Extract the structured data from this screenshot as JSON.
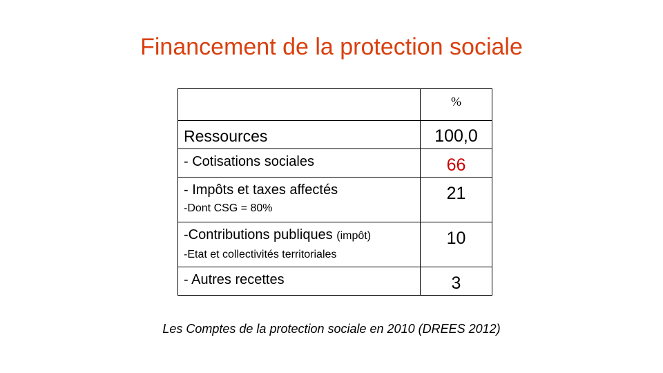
{
  "slide": {
    "title": "Financement de la protection sociale",
    "source": "Les Comptes de la protection sociale en 2010  (DREES 2012)",
    "colors": {
      "title": "#d9400f",
      "highlight_value": "#cc0000",
      "text": "#000000"
    }
  },
  "table": {
    "header_unit": "%",
    "rows": [
      {
        "label": "Ressources",
        "value": "100,0"
      },
      {
        "label": "- Cotisations sociales",
        "value": "66"
      },
      {
        "label": "- Impôts et taxes affectés",
        "sublabel": "-Dont CSG = 80%",
        "value": "21"
      },
      {
        "label": "-Contributions publiques ",
        "label_suffix": "(impôt)",
        "sublabel": "-Etat et collectivités  territoriales",
        "value": "10"
      },
      {
        "label": "- Autres recettes",
        "value": "3"
      }
    ]
  }
}
